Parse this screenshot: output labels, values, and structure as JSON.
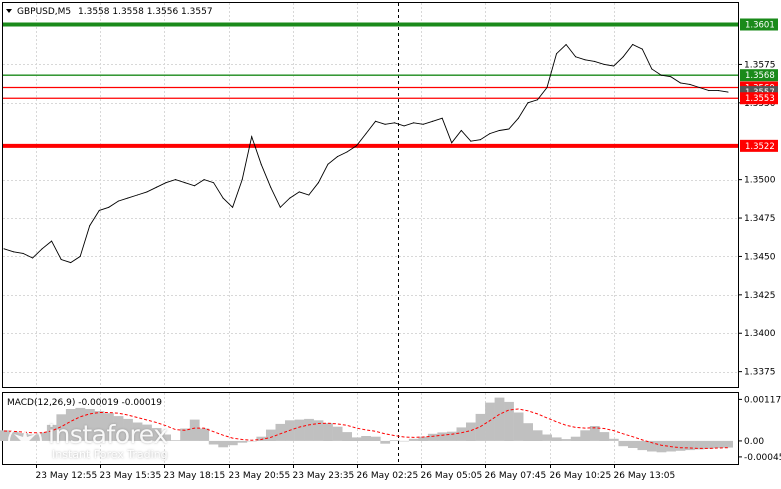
{
  "header": {
    "symbol": "GBPUSD,M5",
    "ohlc": "1.3558 1.3558 1.3556 1.3557"
  },
  "macd": {
    "label": "MACD(12,26,9) -0.00019 -0.00019",
    "ticks": [
      "0.00117",
      "0.00",
      "-0.00045"
    ]
  },
  "watermark": {
    "brand": "instaforex",
    "slogan": "Instant Forex Trading"
  },
  "colors": {
    "green": "#1a8a1a",
    "red": "#ff0000",
    "price": "#000000",
    "histogram": "#c0c0c0",
    "signal": "#ff0000",
    "grid": "#d8d8d8"
  },
  "chart_data": {
    "type": "line",
    "title": "GBPUSD,M5",
    "ylim": [
      1.3365,
      1.3615
    ],
    "y_ticks": [
      "1.3375",
      "1.3400",
      "1.3425",
      "1.3450",
      "1.3475",
      "1.3500",
      "1.3550",
      "1.3575"
    ],
    "x_ticks": [
      "23 May 12:55",
      "23 May 15:35",
      "23 May 18:15",
      "23 May 20:55",
      "23 May 23:35",
      "26 May 02:25",
      "26 May 05:05",
      "26 May 07:45",
      "26 May 10:25",
      "26 May 13:05"
    ],
    "levels": [
      {
        "value": 1.3601,
        "label": "1.3601",
        "color": "#1a8a1a",
        "weight": "thick"
      },
      {
        "value": 1.3568,
        "label": "1.3568",
        "color": "#1a8a1a",
        "weight": "thin"
      },
      {
        "value": 1.356,
        "label": "1.3560",
        "color": "#ff0000",
        "weight": "thin"
      },
      {
        "value": 1.3557,
        "label": "1.3557",
        "color": "#555555",
        "weight": "tag"
      },
      {
        "value": 1.3553,
        "label": "1.3553",
        "color": "#ff0000",
        "weight": "thin"
      },
      {
        "value": 1.3522,
        "label": "1.3522",
        "color": "#ff0000",
        "weight": "thick"
      }
    ],
    "series": [
      {
        "values": [
          1.3455,
          1.3453,
          1.3452,
          1.3449,
          1.3455,
          1.346,
          1.3448,
          1.3446,
          1.345,
          1.347,
          1.348,
          1.3482,
          1.3486,
          1.3488,
          1.349,
          1.3492,
          1.3495,
          1.3498,
          1.35,
          1.3498,
          1.3496,
          1.35,
          1.3498,
          1.3488,
          1.3482,
          1.35,
          1.3528,
          1.351,
          1.3495,
          1.3482,
          1.3488,
          1.3492,
          1.349,
          1.3498,
          1.351,
          1.3515,
          1.3518,
          1.3522,
          1.353,
          1.3538,
          1.3536,
          1.3537,
          1.3535,
          1.3537,
          1.3536,
          1.3538,
          1.354,
          1.3524,
          1.3532,
          1.3525,
          1.3526,
          1.353,
          1.3532,
          1.3533,
          1.354,
          1.355,
          1.3552,
          1.356,
          1.3582,
          1.3588,
          1.358,
          1.3578,
          1.3577,
          1.3575,
          1.3574,
          1.358,
          1.3588,
          1.3585,
          1.3572,
          1.3568,
          1.3567,
          1.3563,
          1.3562,
          1.356,
          1.3558,
          1.3558,
          1.3557
        ]
      }
    ],
    "macd_ylim": [
      -0.00065,
      0.00135
    ],
    "macd_histogram": [
      0.0003,
      0.00026,
      0.00022,
      0.00018,
      0.00024,
      0.00045,
      0.00075,
      0.0009,
      0.00093,
      0.0009,
      0.00084,
      0.00078,
      0.0007,
      0.00062,
      0.00052,
      0.00046,
      0.00036,
      0.00018,
      2e-05,
      0.00035,
      0.0006,
      0.00035,
      -0.0001,
      -0.00018,
      -0.00012,
      -5e-05,
      0.0,
      0.00012,
      0.00032,
      0.00048,
      0.00058,
      0.0006,
      0.00062,
      0.00058,
      0.0005,
      0.0004,
      0.00025,
      0.0001,
      0.00014,
      0.00012,
      -8e-05,
      2e-05,
      0.0,
      6e-05,
      0.00012,
      0.0002,
      0.00024,
      0.00026,
      0.00038,
      0.00052,
      0.00076,
      0.00108,
      0.00122,
      0.0011,
      0.0008,
      0.0005,
      0.0003,
      0.00018,
      0.0001,
      5e-05,
      0.00012,
      0.0003,
      0.00042,
      0.00025,
      6e-05,
      -0.00015,
      -0.0002,
      -0.00026,
      -0.0003,
      -0.00032,
      -0.0003,
      -0.00028,
      -0.00026,
      -0.00024,
      -0.00022,
      -0.0002,
      -0.00019
    ],
    "macd_signal": [
      0.00028,
      0.00027,
      0.00025,
      0.00023,
      0.00023,
      0.00028,
      0.0004,
      0.00055,
      0.00068,
      0.00076,
      0.0008,
      0.0008,
      0.00078,
      0.00073,
      0.00066,
      0.00059,
      0.00052,
      0.00043,
      0.00032,
      0.0003,
      0.00036,
      0.00036,
      0.00026,
      0.00016,
      8e-05,
      4e-05,
      2e-05,
      4e-05,
      0.0001,
      0.0002,
      0.0003,
      0.00039,
      0.00045,
      0.00049,
      0.0005,
      0.00048,
      0.00044,
      0.00036,
      0.00031,
      0.00027,
      0.0002,
      0.00015,
      0.00011,
      0.0001,
      0.00011,
      0.00013,
      0.00016,
      0.00019,
      0.00023,
      0.00029,
      0.0004,
      0.00057,
      0.00075,
      0.00087,
      0.0009,
      0.00085,
      0.00076,
      0.00065,
      0.00054,
      0.00044,
      0.00038,
      0.00036,
      0.00037,
      0.00035,
      0.00029,
      0.0002,
      0.00012,
      3e-05,
      -5e-05,
      -0.00012,
      -0.00016,
      -0.00019,
      -0.0002,
      -0.00021,
      -0.00021,
      -0.0002,
      -0.00019
    ]
  }
}
